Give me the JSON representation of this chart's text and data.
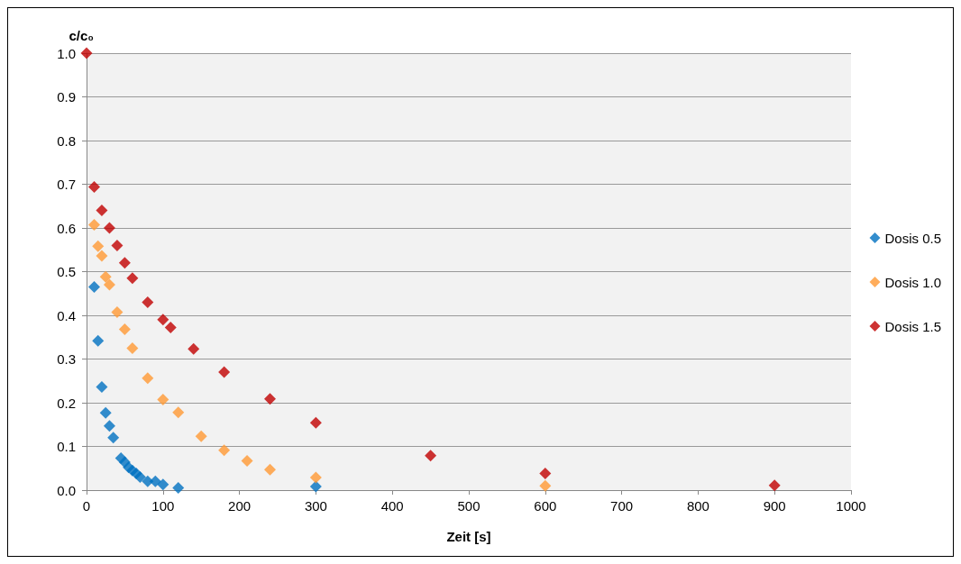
{
  "chart_data": {
    "type": "scatter",
    "xlabel": "Zeit [s]",
    "ylabel": "c/c₀",
    "xlim": [
      0,
      1000
    ],
    "xticks": [
      0,
      100,
      200,
      300,
      400,
      500,
      600,
      700,
      800,
      900,
      1000
    ],
    "ylim": [
      0,
      1
    ],
    "yticks": [
      {
        "value": 0,
        "label": "0.0"
      },
      0.1,
      0.2,
      0.3,
      0.4,
      0.5,
      0.6,
      0.7,
      0.8,
      0.9,
      {
        "value": 1,
        "label": "1.0"
      }
    ],
    "grid": "y",
    "legend": "right",
    "marker": "diamond",
    "series": [
      {
        "name": "Dosis 0.5",
        "color": "#0070c0",
        "x": [
          10,
          15,
          20,
          25,
          30,
          35,
          45,
          50,
          55,
          60,
          65,
          70,
          80,
          90,
          100,
          120,
          300
        ],
        "values": [
          0.465,
          0.342,
          0.236,
          0.177,
          0.147,
          0.12,
          0.073,
          0.064,
          0.052,
          0.045,
          0.038,
          0.03,
          0.02,
          0.02,
          0.013,
          0.005,
          0.008
        ]
      },
      {
        "name": "Dosis 1.0",
        "color": "#ff9933",
        "x": [
          10,
          15,
          20,
          25,
          30,
          40,
          50,
          60,
          80,
          100,
          120,
          150,
          180,
          210,
          240,
          300,
          600
        ],
        "values": [
          0.607,
          0.558,
          0.536,
          0.488,
          0.47,
          0.407,
          0.368,
          0.325,
          0.256,
          0.207,
          0.178,
          0.123,
          0.091,
          0.067,
          0.047,
          0.029,
          0.01
        ]
      },
      {
        "name": "Dosis 1.5",
        "color": "#c00000",
        "x": [
          0,
          10,
          20,
          30,
          40,
          50,
          60,
          80,
          100,
          110,
          140,
          180,
          240,
          300,
          450,
          600,
          900
        ],
        "values": [
          1.0,
          0.694,
          0.64,
          0.6,
          0.56,
          0.52,
          0.485,
          0.43,
          0.39,
          0.372,
          0.323,
          0.27,
          0.209,
          0.154,
          0.079,
          0.038,
          0.011
        ]
      }
    ]
  }
}
